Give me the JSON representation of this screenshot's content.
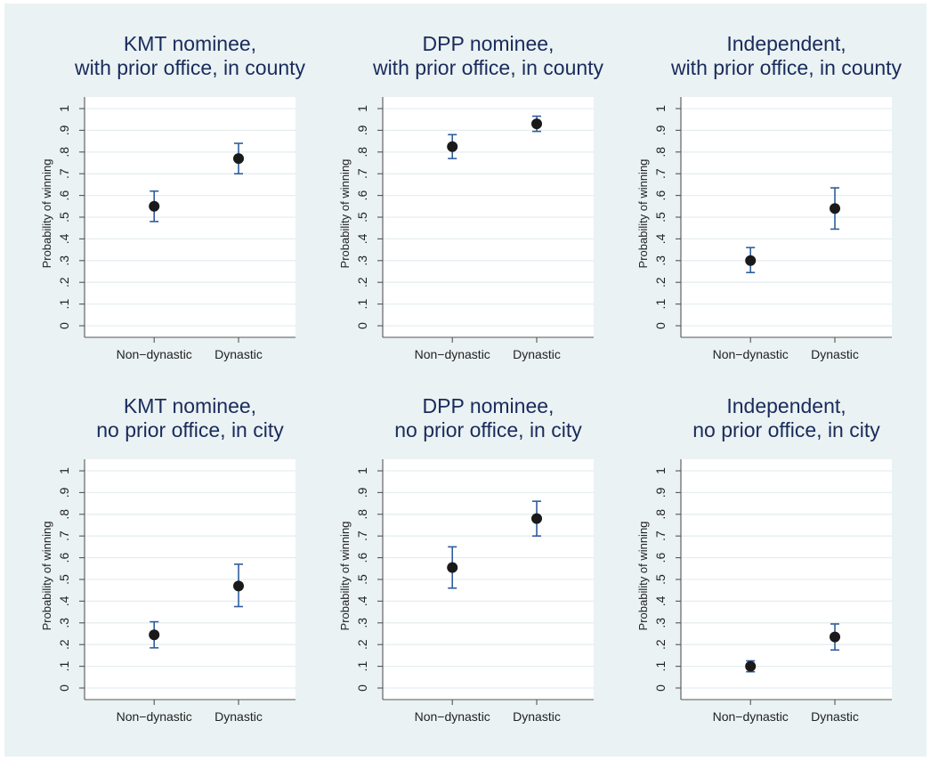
{
  "colors": {
    "background": "#eaf2f3",
    "plot_area": "#ffffff",
    "title": "#1a2b5c",
    "point": "#1a1a1a",
    "errorbar": "#2f5d9c"
  },
  "chart_data": [
    {
      "type": "scatter",
      "title": [
        "KMT nominee,",
        "with prior office, in county"
      ],
      "ylabel": "Probability of winning",
      "categories": [
        "Non−dynastic",
        "Dynastic"
      ],
      "ylim": [
        0,
        1
      ],
      "yticks": [
        "0",
        ".1",
        ".2",
        ".3",
        ".4",
        ".5",
        ".6",
        ".7",
        ".8",
        ".9",
        "1"
      ],
      "grid": true,
      "points": [
        {
          "category": "Non−dynastic",
          "estimate": 0.55,
          "lower": 0.48,
          "upper": 0.62
        },
        {
          "category": "Dynastic",
          "estimate": 0.77,
          "lower": 0.7,
          "upper": 0.84
        }
      ]
    },
    {
      "type": "scatter",
      "title": [
        "DPP nominee,",
        "with prior office, in county"
      ],
      "ylabel": "Probability of winning",
      "categories": [
        "Non−dynastic",
        "Dynastic"
      ],
      "ylim": [
        0,
        1
      ],
      "yticks": [
        "0",
        ".1",
        ".2",
        ".3",
        ".4",
        ".5",
        ".6",
        ".7",
        ".8",
        ".9",
        "1"
      ],
      "grid": true,
      "points": [
        {
          "category": "Non−dynastic",
          "estimate": 0.825,
          "lower": 0.77,
          "upper": 0.88
        },
        {
          "category": "Dynastic",
          "estimate": 0.93,
          "lower": 0.895,
          "upper": 0.965
        }
      ]
    },
    {
      "type": "scatter",
      "title": [
        "Independent,",
        "with prior office, in county"
      ],
      "ylabel": "Probability of winning",
      "categories": [
        "Non−dynastic",
        "Dynastic"
      ],
      "ylim": [
        0,
        1
      ],
      "yticks": [
        "0",
        ".1",
        ".2",
        ".3",
        ".4",
        ".5",
        ".6",
        ".7",
        ".8",
        ".9",
        "1"
      ],
      "grid": true,
      "points": [
        {
          "category": "Non−dynastic",
          "estimate": 0.3,
          "lower": 0.245,
          "upper": 0.36
        },
        {
          "category": "Dynastic",
          "estimate": 0.54,
          "lower": 0.445,
          "upper": 0.635
        }
      ]
    },
    {
      "type": "scatter",
      "title": [
        "KMT nominee,",
        "no prior office, in city"
      ],
      "ylabel": "Probability of winning",
      "categories": [
        "Non−dynastic",
        "Dynastic"
      ],
      "ylim": [
        0,
        1
      ],
      "yticks": [
        "0",
        ".1",
        ".2",
        ".3",
        ".4",
        ".5",
        ".6",
        ".7",
        ".8",
        ".9",
        "1"
      ],
      "grid": true,
      "points": [
        {
          "category": "Non−dynastic",
          "estimate": 0.245,
          "lower": 0.185,
          "upper": 0.305
        },
        {
          "category": "Dynastic",
          "estimate": 0.47,
          "lower": 0.375,
          "upper": 0.57
        }
      ]
    },
    {
      "type": "scatter",
      "title": [
        "DPP nominee,",
        "no prior office, in city"
      ],
      "ylabel": "Probability of winning",
      "categories": [
        "Non−dynastic",
        "Dynastic"
      ],
      "ylim": [
        0,
        1
      ],
      "yticks": [
        "0",
        ".1",
        ".2",
        ".3",
        ".4",
        ".5",
        ".6",
        ".7",
        ".8",
        ".9",
        "1"
      ],
      "grid": true,
      "points": [
        {
          "category": "Non−dynastic",
          "estimate": 0.555,
          "lower": 0.46,
          "upper": 0.65
        },
        {
          "category": "Dynastic",
          "estimate": 0.78,
          "lower": 0.7,
          "upper": 0.86
        }
      ]
    },
    {
      "type": "scatter",
      "title": [
        "Independent,",
        "no prior office, in city"
      ],
      "ylabel": "Probability of winning",
      "categories": [
        "Non−dynastic",
        "Dynastic"
      ],
      "ylim": [
        0,
        1
      ],
      "yticks": [
        "0",
        ".1",
        ".2",
        ".3",
        ".4",
        ".5",
        ".6",
        ".7",
        ".8",
        ".9",
        "1"
      ],
      "grid": true,
      "points": [
        {
          "category": "Non−dynastic",
          "estimate": 0.1,
          "lower": 0.075,
          "upper": 0.125
        },
        {
          "category": "Dynastic",
          "estimate": 0.235,
          "lower": 0.175,
          "upper": 0.295
        }
      ]
    }
  ]
}
